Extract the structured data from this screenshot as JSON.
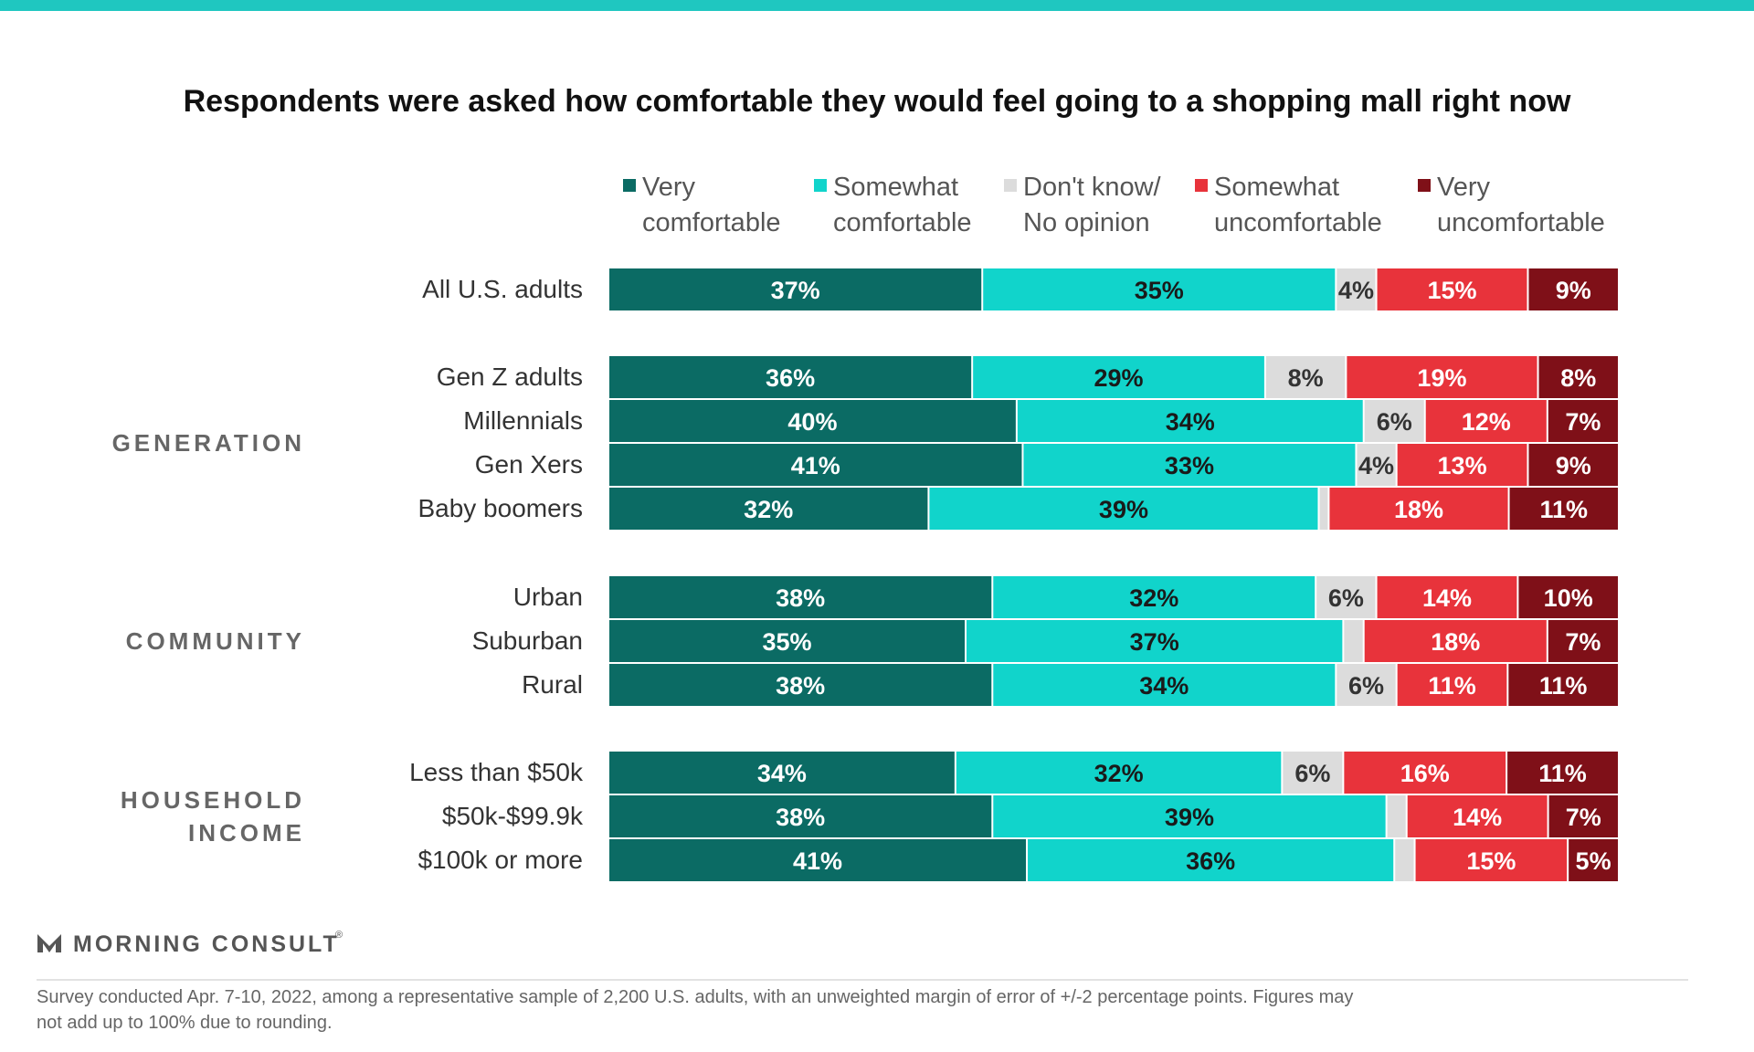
{
  "colors": {
    "top_bar": "#1fc7c0",
    "very_comfortable": "#0b6b64",
    "somewhat_comfortable": "#11d4cb",
    "dont_know": "#dcdcdc",
    "somewhat_uncomfortable": "#e8333b",
    "very_uncomfortable": "#7f1018"
  },
  "brand": {
    "name": "MORNING CONSULT",
    "mark": "®",
    "logo_icon": "morning-consult-m-icon"
  },
  "footnote": [
    "Survey conducted Apr. 7-10, 2022, among a representative sample of 2,200 U.S. adults, with an unweighted margin of error of +/-2 percentage points. Figures may",
    "not add up to 100% due to rounding."
  ],
  "chart_data": {
    "type": "bar",
    "orientation": "horizontal",
    "stacked": true,
    "percent_stacked": true,
    "title": "Respondents were asked how comfortable they would feel going to a shopping mall right now",
    "legend_position": "top",
    "grid": false,
    "xlim": [
      0,
      100
    ],
    "series": [
      {
        "name": "Very comfortable",
        "legend_lines": [
          "Very",
          "comfortable"
        ],
        "color_key": "very_comfortable",
        "label_color": "#ffffff"
      },
      {
        "name": "Somewhat comfortable",
        "legend_lines": [
          "Somewhat",
          "comfortable"
        ],
        "color_key": "somewhat_comfortable",
        "label_color": "#1a1a1a"
      },
      {
        "name": "Don't know/ No opinion",
        "legend_lines": [
          "Don't know/",
          "No opinion"
        ],
        "color_key": "dont_know",
        "label_color": "#333333"
      },
      {
        "name": "Somewhat uncomfortable",
        "legend_lines": [
          "Somewhat",
          "uncomfortable"
        ],
        "color_key": "somewhat_uncomfortable",
        "label_color": "#ffffff"
      },
      {
        "name": "Very uncomfortable",
        "legend_lines": [
          "Very",
          "uncomfortable"
        ],
        "color_key": "very_uncomfortable",
        "label_color": "#ffffff"
      }
    ],
    "groups": [
      {
        "label_lines": [],
        "rows": [
          {
            "category": "All U.S. adults",
            "values": [
              37,
              35,
              4,
              15,
              9
            ],
            "labels": [
              "37%",
              "35%",
              "4%",
              "15%",
              "9%"
            ]
          }
        ]
      },
      {
        "label_lines": [
          "GENERATION"
        ],
        "rows": [
          {
            "category": "Gen Z adults",
            "values": [
              36,
              29,
              8,
              19,
              8
            ],
            "labels": [
              "36%",
              "29%",
              "8%",
              "19%",
              "8%"
            ]
          },
          {
            "category": "Millennials",
            "values": [
              40,
              34,
              6,
              12,
              7
            ],
            "labels": [
              "40%",
              "34%",
              "6%",
              "12%",
              "7%"
            ]
          },
          {
            "category": "Gen Xers",
            "values": [
              41,
              33,
              4,
              13,
              9
            ],
            "labels": [
              "41%",
              "33%",
              "4%",
              "13%",
              "9%"
            ]
          },
          {
            "category": "Baby boomers",
            "values": [
              32,
              39,
              1,
              18,
              11
            ],
            "labels": [
              "32%",
              "39%",
              "",
              "18%",
              "11%"
            ]
          }
        ]
      },
      {
        "label_lines": [
          "COMMUNITY"
        ],
        "rows": [
          {
            "category": "Urban",
            "values": [
              38,
              32,
              6,
              14,
              10
            ],
            "labels": [
              "38%",
              "32%",
              "6%",
              "14%",
              "10%"
            ]
          },
          {
            "category": "Suburban",
            "values": [
              35,
              37,
              2,
              18,
              7
            ],
            "labels": [
              "35%",
              "37%",
              "",
              "18%",
              "7%"
            ]
          },
          {
            "category": "Rural",
            "values": [
              38,
              34,
              6,
              11,
              11
            ],
            "labels": [
              "38%",
              "34%",
              "6%",
              "11%",
              "11%"
            ]
          }
        ]
      },
      {
        "label_lines": [
          "HOUSEHOLD",
          "INCOME"
        ],
        "rows": [
          {
            "category": "Less than $50k",
            "values": [
              34,
              32,
              6,
              16,
              11
            ],
            "labels": [
              "34%",
              "32%",
              "6%",
              "16%",
              "11%"
            ]
          },
          {
            "category": "$50k-$99.9k",
            "values": [
              38,
              39,
              2,
              14,
              7
            ],
            "labels": [
              "38%",
              "39%",
              "",
              "14%",
              "7%"
            ]
          },
          {
            "category": "$100k or more",
            "values": [
              41,
              36,
              2,
              15,
              5
            ],
            "labels": [
              "41%",
              "36%",
              "",
              "15%",
              "5%"
            ]
          }
        ]
      }
    ]
  }
}
